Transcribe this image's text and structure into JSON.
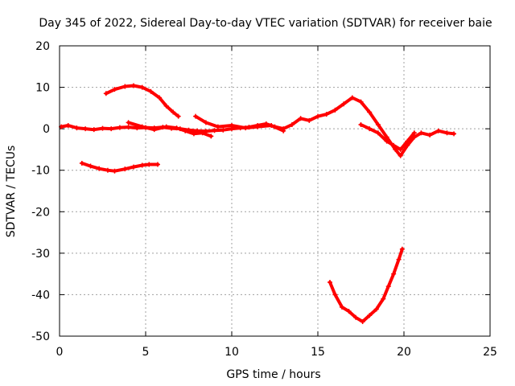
{
  "chart_data": {
    "type": "scatter",
    "title": "Day 345 of 2022, Sidereal Day-to-day VTEC variation (SDTVAR) for receiver baie",
    "xlabel": "GPS time / hours",
    "ylabel": "SDTVAR / TECUs",
    "xlim": [
      0,
      25
    ],
    "ylim": [
      -50,
      20
    ],
    "grid": true,
    "xticks": [
      "0",
      "5",
      "10",
      "15",
      "20",
      "25"
    ],
    "yticks": [
      "20",
      "10",
      "0",
      "-10",
      "-20",
      "-30",
      "-40",
      "-50"
    ],
    "series_color": "#ff0000",
    "series": [
      {
        "name": "main",
        "x": [
          0.1,
          0.5,
          1.0,
          1.5,
          2.0,
          2.5,
          3.0,
          3.5,
          4.0,
          4.5,
          5.0,
          5.5,
          6.0,
          6.5,
          7.0,
          7.5,
          8.0,
          8.5,
          9.0,
          9.5,
          10.0,
          10.5,
          11.0,
          11.5,
          12.0,
          12.5,
          13.0,
          13.5,
          14.0,
          14.5,
          15.0,
          15.5,
          16.0,
          16.5,
          17.0,
          17.5,
          18.0,
          18.5,
          19.0,
          19.5,
          19.8,
          20.2,
          20.6,
          21.0,
          21.5,
          22.0,
          22.5,
          22.9
        ],
        "y": [
          0.5,
          0.8,
          0.2,
          0.0,
          -0.2,
          0.1,
          0.0,
          0.3,
          0.4,
          0.2,
          0.3,
          0.2,
          0.4,
          0.1,
          0.0,
          -0.3,
          -0.5,
          -0.6,
          -0.4,
          -0.3,
          0.0,
          0.2,
          0.4,
          0.8,
          1.2,
          0.5,
          0.0,
          1.0,
          2.5,
          2.0,
          3.0,
          3.5,
          4.5,
          6.0,
          7.5,
          6.5,
          4.0,
          1.0,
          -2.0,
          -5.0,
          -6.5,
          -4.0,
          -2.0,
          -1.0,
          -1.5,
          -0.5,
          -1.0,
          -1.2
        ]
      },
      {
        "name": "branch-a",
        "x": [
          4.0,
          4.8,
          5.5,
          6.2,
          6.8,
          7.3,
          7.8,
          8.3,
          8.8
        ],
        "y": [
          1.5,
          0.5,
          -0.2,
          0.5,
          0.2,
          -0.5,
          -1.2,
          -1.0,
          -1.8
        ]
      },
      {
        "name": "branch-b",
        "x": [
          7.9,
          8.5,
          9.2,
          10.0,
          10.8,
          11.5,
          12.3,
          13.0
        ],
        "y": [
          3.0,
          1.5,
          0.5,
          0.8,
          0.2,
          0.5,
          0.8,
          -0.5
        ]
      },
      {
        "name": "branch-c",
        "x": [
          17.5,
          18.0,
          18.5,
          19.0,
          19.4,
          19.8,
          20.2,
          20.6
        ],
        "y": [
          1.0,
          0.0,
          -1.0,
          -3.0,
          -4.0,
          -5.0,
          -3.0,
          -1.0
        ]
      },
      {
        "name": "arc-upper",
        "x": [
          2.7,
          3.2,
          3.8,
          4.3,
          4.8,
          5.3,
          5.8,
          6.2,
          6.6,
          6.9
        ],
        "y": [
          8.5,
          9.5,
          10.2,
          10.4,
          10.0,
          9.0,
          7.5,
          5.5,
          4.0,
          3.0
        ]
      },
      {
        "name": "arc-lower",
        "x": [
          1.3,
          1.8,
          2.3,
          2.8,
          3.2,
          3.8,
          4.3,
          4.8,
          5.2,
          5.7
        ],
        "y": [
          -8.3,
          -9.0,
          -9.6,
          -10.0,
          -10.2,
          -9.7,
          -9.2,
          -8.8,
          -8.6,
          -8.6
        ]
      },
      {
        "name": "dip",
        "x": [
          15.7,
          16.0,
          16.4,
          16.8,
          17.2,
          17.6,
          18.0,
          18.4,
          18.8,
          19.1,
          19.4,
          19.7,
          19.9
        ],
        "y": [
          -37.0,
          -40.0,
          -43.0,
          -44.0,
          -45.5,
          -46.5,
          -45.0,
          -43.5,
          -41.0,
          -38.0,
          -35.0,
          -31.5,
          -29.0
        ]
      }
    ]
  }
}
